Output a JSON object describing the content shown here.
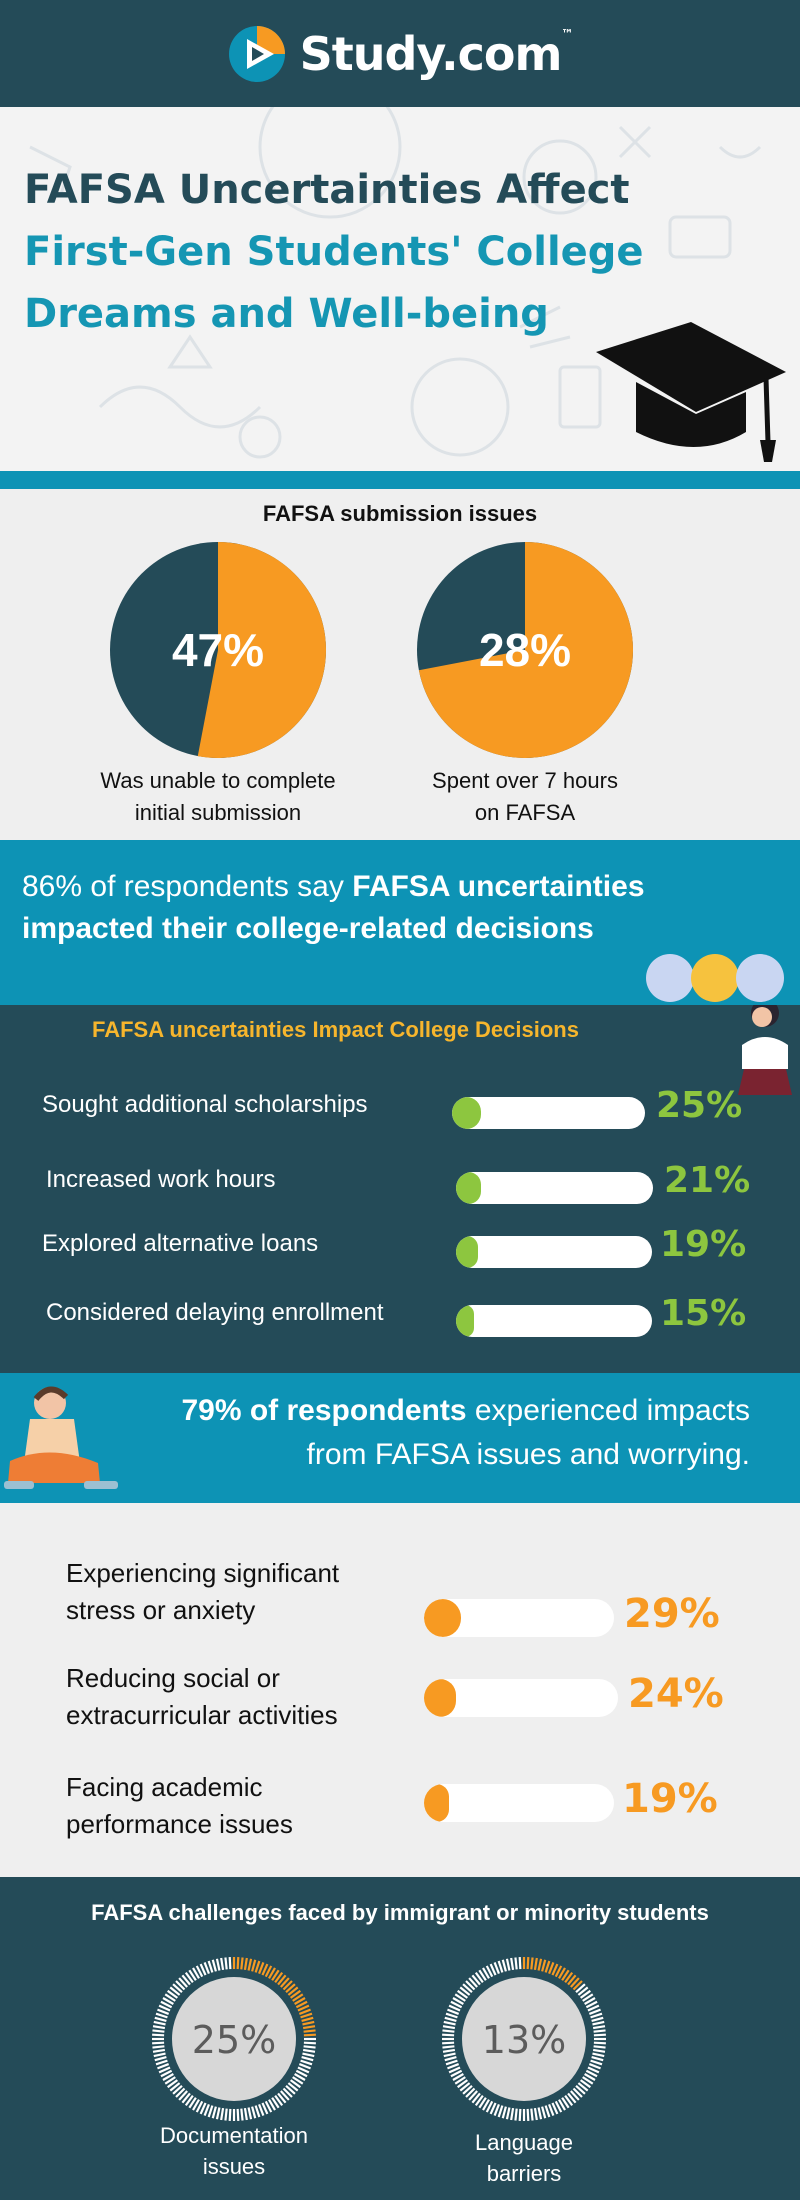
{
  "header": {
    "brand": "Study.com",
    "trademark": "™"
  },
  "title": {
    "line1": "FAFSA Uncertainties Affect",
    "line2": "First-Gen Students' College",
    "line3": "Dreams and Well-being"
  },
  "colors": {
    "navy": "#244b58",
    "teal": "#0d93b5",
    "orange": "#f79a22",
    "green": "#8dc63f",
    "gold": "#f6b52d",
    "light": "#efefef"
  },
  "chart_data": [
    {
      "type": "pie",
      "title": "FAFSA submission issues",
      "slices": [
        {
          "label": "Was unable to complete initial submission",
          "value": 47
        },
        {
          "label": "Spent over 7 hours on FAFSA",
          "value": 28
        }
      ],
      "unit": "%"
    },
    {
      "type": "bar",
      "title": "FAFSA uncertainties Impact College Decisions",
      "categories": [
        "Sought additional scholarships",
        "Increased work hours",
        "Explored alternative loans",
        "Considered delaying enrollment"
      ],
      "values": [
        25,
        21,
        19,
        15
      ],
      "unit": "%"
    },
    {
      "type": "bar",
      "title": "",
      "categories": [
        "Experiencing significant stress or anxiety",
        "Reducing social or extracurricular activities",
        "Facing academic performance issues"
      ],
      "values": [
        29,
        24,
        19
      ],
      "unit": "%"
    },
    {
      "type": "pie",
      "title": "FAFSA challenges faced by immigrant or minority students",
      "slices": [
        {
          "label": "Documentation issues",
          "value": 25
        },
        {
          "label": "Language barriers",
          "value": 13
        }
      ],
      "unit": "%"
    }
  ],
  "pies": {
    "heading": "FAFSA submission issues",
    "items": [
      {
        "value_text": "47%",
        "label1": "Was unable to complete",
        "label2": "initial submission"
      },
      {
        "value_text": "28%",
        "label1": "Spent over 7 hours",
        "label2": "on FAFSA"
      }
    ]
  },
  "banner86": {
    "plain": "86% of respondents say ",
    "bold1": "FAFSA uncertainties",
    "bold2": "impacted their college-related decisions"
  },
  "decisions": {
    "heading": "FAFSA uncertainties Impact College Decisions",
    "items": [
      {
        "label": "Sought additional scholarships",
        "value_text": "25%"
      },
      {
        "label": "Increased work hours",
        "value_text": "21%"
      },
      {
        "label": "Explored alternative loans",
        "value_text": "19%"
      },
      {
        "label": "Considered delaying enrollment",
        "value_text": "15%"
      }
    ]
  },
  "banner79": {
    "bold": "79% of respondents",
    "plain1": " experienced impacts",
    "plain2": "from FAFSA issues and worrying."
  },
  "impacts": {
    "items": [
      {
        "label1": "Experiencing significant",
        "label2": "stress or anxiety",
        "value_text": "29%"
      },
      {
        "label1": "Reducing social or",
        "label2": "extracurricular activities",
        "value_text": "24%"
      },
      {
        "label1": "Facing academic",
        "label2": "performance issues",
        "value_text": "19%"
      }
    ]
  },
  "rings": {
    "heading": "FAFSA challenges faced by immigrant or minority students",
    "items": [
      {
        "value_text": "25%",
        "label1": "Documentation",
        "label2": "issues"
      },
      {
        "value_text": "13%",
        "label1": "Language",
        "label2": "barriers"
      }
    ]
  }
}
